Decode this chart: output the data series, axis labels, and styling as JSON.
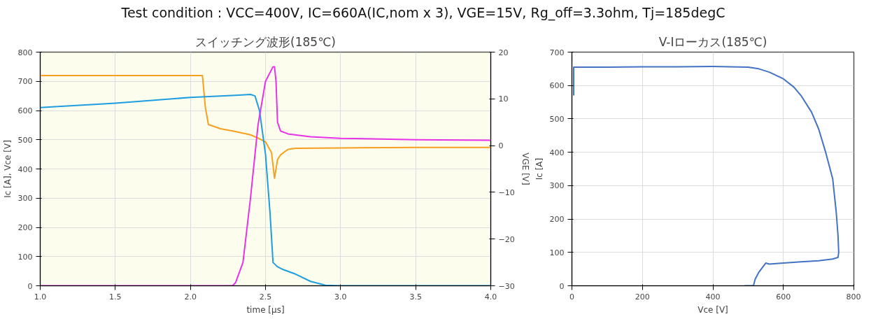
{
  "chart_data": [
    {
      "type": "line",
      "title": "スイッチング波形(185℃)",
      "xlabel": "time [μs]",
      "ylabel": "Ic [A], Vce [V]",
      "y2label": "VGE [V]",
      "annotations": [
        "Test condition :   VCC=400V, IC=660A(IC,nom x 3), VGE=15V, Rg_off=3.3ohm, Tj=185degC"
      ],
      "xlim": [
        1.0,
        4.0
      ],
      "xticks": [
        {
          "value": 1.0,
          "label": "1.0"
        },
        1.5,
        {
          "value": 2.0,
          "label": "2.0"
        },
        2.5,
        {
          "value": 3.0,
          "label": "3.0"
        },
        3.5,
        {
          "value": 4.0,
          "label": "4.0"
        }
      ],
      "ylim": [
        0,
        800
      ],
      "yticks": [
        0,
        100,
        200,
        300,
        400,
        500,
        600,
        700,
        800
      ],
      "y2lim": [
        -30,
        20
      ],
      "y2ticks": [
        -30,
        -20,
        -10,
        0,
        10,
        20
      ],
      "grid": true,
      "line_style": "solid",
      "series": [
        {
          "color": "#f5a01e",
          "axis": "y2",
          "x": [
            1.0,
            1.5,
            2.0,
            2.08,
            2.1,
            2.12,
            2.2,
            2.3,
            2.4,
            2.45,
            2.5,
            2.54,
            2.56,
            2.58,
            2.6,
            2.62,
            2.65,
            2.7,
            3.0,
            3.5,
            4.0
          ],
          "values": [
            15,
            15,
            15,
            15,
            8,
            4.5,
            3.6,
            3,
            2.3,
            1.6,
            0.8,
            -1.5,
            -7,
            -3,
            -2,
            -1.5,
            -0.8,
            -0.6,
            -0.5,
            -0.4,
            -0.4
          ]
        },
        {
          "color": "#1e9de0",
          "x": [
            1.0,
            1.5,
            2.0,
            2.3,
            2.4,
            2.43,
            2.46,
            2.5,
            2.53,
            2.55,
            2.58,
            2.62,
            2.7,
            2.8,
            2.9,
            3.0,
            4.0
          ],
          "values": [
            610,
            625,
            645,
            652,
            655,
            650,
            600,
            450,
            250,
            80,
            65,
            55,
            40,
            15,
            2,
            0,
            0
          ]
        },
        {
          "color": "#e832e8",
          "x": [
            1.0,
            2.0,
            2.28,
            2.3,
            2.35,
            2.4,
            2.45,
            2.5,
            2.55,
            2.56,
            2.57,
            2.58,
            2.6,
            2.65,
            2.8,
            3.0,
            3.5,
            4.0
          ],
          "values": [
            0,
            0,
            0,
            10,
            80,
            300,
            550,
            700,
            750,
            750,
            700,
            560,
            530,
            520,
            510,
            505,
            500,
            498
          ]
        }
      ]
    },
    {
      "type": "line",
      "title": "V-Iローカス(185℃)",
      "xlabel": "Vce [V]",
      "ylabel": "Ic [A]",
      "xlim": [
        0,
        800
      ],
      "xticks": [
        0,
        200,
        400,
        600,
        800
      ],
      "ylim": [
        0,
        700
      ],
      "yticks": [
        0,
        100,
        200,
        300,
        400,
        500,
        600,
        700
      ],
      "grid": true,
      "line_style": "solid",
      "series": [
        {
          "color": "#4472c4",
          "x": [
            5,
            5,
            20,
            100,
            200,
            300,
            400,
            500,
            530,
            560,
            600,
            630,
            650,
            680,
            700,
            720,
            740,
            750,
            755,
            757,
            755,
            740,
            700,
            650,
            600,
            560,
            550,
            530,
            520,
            515,
            490
          ],
          "values": [
            570,
            655,
            655,
            655,
            656,
            656,
            657,
            655,
            650,
            640,
            620,
            595,
            570,
            520,
            470,
            400,
            320,
            220,
            150,
            100,
            85,
            80,
            75,
            72,
            68,
            65,
            68,
            40,
            20,
            0,
            0
          ]
        }
      ]
    }
  ]
}
